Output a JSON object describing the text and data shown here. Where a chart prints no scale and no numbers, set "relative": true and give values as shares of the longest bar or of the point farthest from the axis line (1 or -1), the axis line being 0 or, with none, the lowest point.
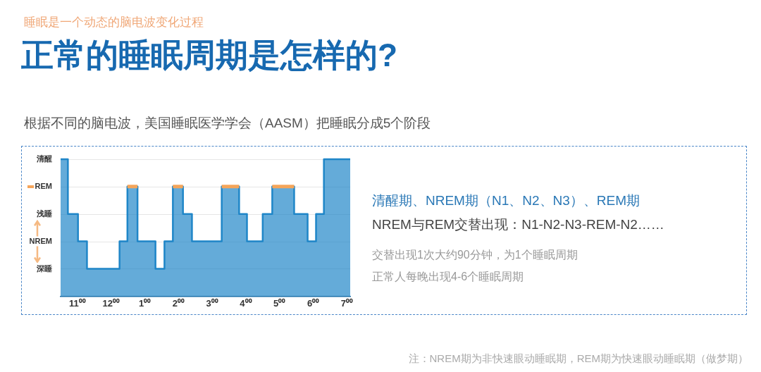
{
  "chart_data": {
    "type": "area",
    "title": "正常的睡眠周期是怎样的?",
    "subtitle": "睡眠是一个动态的脑电波变化过程",
    "relative": true,
    "annotations": [
      "清醒",
      "REM",
      "浅睡",
      "NREM",
      "深睡",
      "根据不同的脑电波，美国睡眠医学学会（AASM）把睡眠分成5个阶段",
      "清醒期、NREM期（N1、N2、N3）、REM期",
      "NREM与REM交替出现：N1-N2-N3-REM-N2……",
      "交替出现1次大约90分钟，为1个睡眠周期",
      "正常人每晚出现4-6个睡眠周期",
      "注：NREM期为非快速眼动睡眠期，REM期为快速眼动睡眠期（做梦期）"
    ],
    "series": [
      {
        "color": "#1f86c8",
        "x": [
          "--01-01T22:30",
          "--01-01T22:43",
          "--01-01T22:43",
          "--01-01T23:01",
          "--01-01T23:01",
          "--01-01T23:17",
          "--01-01T23:17",
          "--01-02T00:15",
          "--01-02T00:15",
          "--01-02T00:29",
          "--01-02T00:29",
          "--01-02T00:47",
          "--01-02T00:47",
          "--01-02T01:19",
          "--01-02T01:19",
          "--01-02T01:35",
          "--01-02T01:35",
          "--01-02T01:50",
          "--01-02T01:50",
          "--01-02T02:08",
          "--01-02T02:08",
          "--01-02T02:24",
          "--01-02T02:24",
          "--01-02T03:17",
          "--01-02T03:17",
          "--01-02T03:48",
          "--01-02T03:48",
          "--01-02T04:02",
          "--01-02T04:02",
          "--01-02T04:30",
          "--01-02T04:30",
          "--01-02T04:47",
          "--01-02T04:47",
          "--01-02T05:26",
          "--01-02T05:26",
          "--01-02T05:50",
          "--01-02T05:50",
          "--01-02T06:05",
          "--01-02T06:05",
          "--01-02T06:19",
          "--01-02T06:19",
          "--01-02T07:06"
        ],
        "values": [
          1,
          1,
          0.6,
          0.6,
          0.4,
          0.4,
          0.2,
          0.2,
          0.4,
          0.4,
          0.8,
          0.8,
          0.4,
          0.4,
          0.2,
          0.2,
          0.4,
          0.4,
          0.8,
          0.8,
          0.6,
          0.6,
          0.4,
          0.4,
          0.8,
          0.8,
          0.6,
          0.6,
          0.4,
          0.4,
          0.6,
          0.6,
          0.8,
          0.8,
          0.6,
          0.6,
          0.4,
          0.4,
          0.6,
          0.6,
          1,
          1
        ]
      },
      {
        "type": "line",
        "color": "#f5a55a",
        "x": [
          "--01-02T00:29",
          "--01-02T00:47",
          "--01-02T01:00",
          "--01-02T01:50",
          "--01-02T02:08",
          "--01-02T02:30",
          "--01-02T03:17",
          "--01-02T03:48",
          "--01-02T04:00",
          "--01-02T04:47",
          "--01-02T05:26"
        ],
        "values": [
          0.8,
          0.8,
          null,
          0.8,
          0.8,
          null,
          0.8,
          0.8,
          null,
          0.8,
          0.8
        ]
      }
    ],
    "xlim": [
      "--01-01T22:30",
      "--01-02T07:06"
    ],
    "xticks": [
      {
        "value": "--01-01T23:00",
        "label": "11⁰⁰"
      },
      {
        "value": "--01-02T00:00",
        "label": "12⁰⁰"
      },
      {
        "value": "--01-02T01:00",
        "label": "1⁰⁰"
      },
      {
        "value": "--01-02T02:00",
        "label": "2⁰⁰"
      },
      {
        "value": "--01-02T03:00",
        "label": "3⁰⁰"
      },
      {
        "value": "--01-02T04:00",
        "label": "4⁰⁰"
      },
      {
        "value": "--01-02T05:00",
        "label": "5⁰⁰"
      },
      {
        "value": "--01-02T06:00",
        "label": "6⁰⁰"
      },
      {
        "value": "--01-02T07:00",
        "label": "7⁰⁰"
      }
    ],
    "grid": "y",
    "legend": false
  }
}
